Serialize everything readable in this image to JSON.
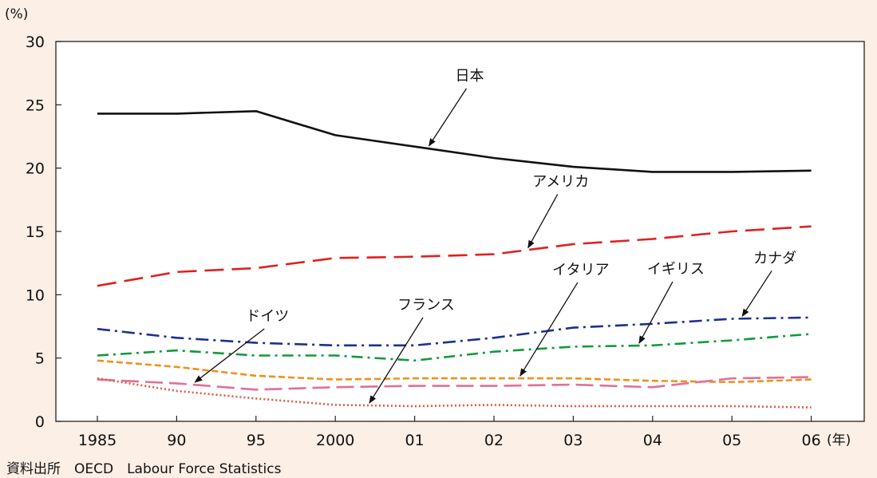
{
  "chart_data": {
    "type": "line",
    "y_unit": "(%)",
    "x_unit": "(年)",
    "categories": [
      "1985",
      "90",
      "95",
      "2000",
      "01",
      "02",
      "03",
      "04",
      "05",
      "06"
    ],
    "ylim": [
      0,
      30
    ],
    "yticks": [
      0,
      5,
      10,
      15,
      20,
      25,
      30
    ],
    "grid": false,
    "series": [
      {
        "name": "日本",
        "color": "#111111",
        "dash": "",
        "values": [
          24.3,
          24.3,
          24.5,
          22.6,
          21.7,
          20.8,
          20.1,
          19.7,
          19.7,
          19.8
        ]
      },
      {
        "name": "アメリカ",
        "color": "#e02020",
        "dash": "24 10",
        "values": [
          10.7,
          11.8,
          12.1,
          12.9,
          13.0,
          13.2,
          14.0,
          14.4,
          15.0,
          15.4
        ]
      },
      {
        "name": "カナダ",
        "color": "#1f2f8f",
        "dash": "16 6 3 6",
        "values": [
          7.3,
          6.6,
          6.2,
          6.0,
          6.0,
          6.6,
          7.4,
          7.7,
          8.1,
          8.2
        ]
      },
      {
        "name": "イギリス",
        "color": "#129a3c",
        "dash": "14 6 3 6",
        "values": [
          5.2,
          5.6,
          5.2,
          5.2,
          4.8,
          5.5,
          5.9,
          6.0,
          6.4,
          6.9
        ]
      },
      {
        "name": "イタリア",
        "color": "#f0901c",
        "dash": "8 4",
        "values": [
          4.8,
          4.3,
          3.6,
          3.3,
          3.4,
          3.4,
          3.4,
          3.2,
          3.1,
          3.3
        ]
      },
      {
        "name": "ドイツ",
        "color": "#e0709a",
        "dash": "22 8",
        "values": [
          3.3,
          3.0,
          2.5,
          2.7,
          2.8,
          2.8,
          2.9,
          2.7,
          3.4,
          3.5
        ]
      },
      {
        "name": "フランス",
        "color": "#e05a3a",
        "dash": "2 3",
        "values": [
          3.4,
          2.4,
          1.8,
          1.3,
          1.2,
          1.3,
          1.2,
          1.2,
          1.2,
          1.1
        ]
      }
    ],
    "annotations": [
      {
        "text": "日本",
        "series": "日本",
        "x_index": 4.15
      },
      {
        "text": "アメリカ",
        "series": "アメリカ",
        "x_index": 5.4
      },
      {
        "text": "カナダ",
        "series": "カナダ",
        "x_index": 8.1
      },
      {
        "text": "イギリス",
        "series": "イギリス",
        "x_index": 6.8
      },
      {
        "text": "イタリア",
        "series": "イタリア",
        "x_index": 5.3
      },
      {
        "text": "ドイツ",
        "series": "ドイツ",
        "x_index": 1.2
      },
      {
        "text": "フランス",
        "series": "フランス",
        "x_index": 3.4
      }
    ]
  },
  "source": "資料出所　OECD　Labour Force Statistics"
}
